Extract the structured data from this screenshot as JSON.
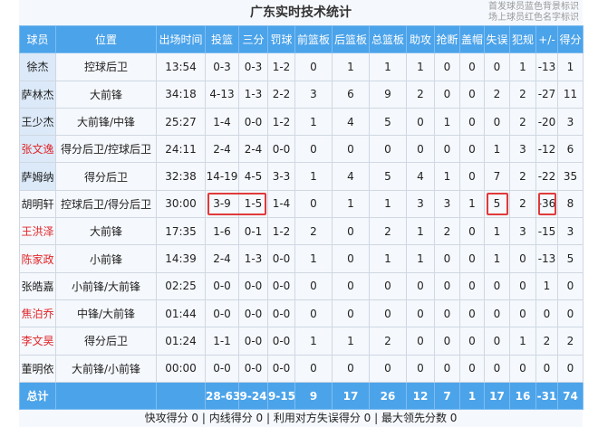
{
  "title": "广东实时技术统计",
  "notes": [
    "首发球员蓝色背景标识",
    "场上球员红色名字标识"
  ],
  "columns": [
    "球员",
    "位置",
    "出场时间",
    "投篮",
    "三分",
    "罚球",
    "前篮板",
    "后篮板",
    "总篮板",
    "助攻",
    "抢断",
    "盖帽",
    "失误",
    "犯规",
    "+/-",
    "得分"
  ],
  "colors": {
    "header": "#4ba3ea",
    "starter_bg": "#dce9f8",
    "on_court_name": "#e0262a",
    "highlight_box": "#e03a3a"
  },
  "players": [
    {
      "name": "徐杰",
      "starter": true,
      "on_court": false,
      "stats": [
        "控球后卫",
        "13:54",
        "0-3",
        "0-3",
        "1-2",
        "0",
        "1",
        "1",
        "1",
        "0",
        "0",
        "0",
        "1",
        "-13",
        "1"
      ]
    },
    {
      "name": "萨林杰",
      "starter": true,
      "on_court": false,
      "stats": [
        "大前锋",
        "34:18",
        "4-13",
        "1-3",
        "2-2",
        "3",
        "6",
        "9",
        "2",
        "0",
        "0",
        "2",
        "2",
        "-27",
        "11"
      ]
    },
    {
      "name": "王少杰",
      "starter": true,
      "on_court": false,
      "stats": [
        "大前锋/中锋",
        "25:27",
        "1-4",
        "0-0",
        "1-2",
        "1",
        "4",
        "5",
        "0",
        "1",
        "0",
        "0",
        "2",
        "-20",
        "3"
      ]
    },
    {
      "name": "张文逸",
      "starter": true,
      "on_court": true,
      "stats": [
        "得分后卫/控球后卫",
        "24:11",
        "2-4",
        "2-4",
        "0-0",
        "0",
        "0",
        "0",
        "0",
        "0",
        "0",
        "1",
        "3",
        "-12",
        "6"
      ]
    },
    {
      "name": "萨姆纳",
      "starter": true,
      "on_court": false,
      "stats": [
        "得分后卫",
        "32:38",
        "14-19",
        "4-5",
        "3-3",
        "1",
        "4",
        "5",
        "4",
        "1",
        "0",
        "7",
        "2",
        "-22",
        "35"
      ]
    },
    {
      "name": "胡明轩",
      "starter": false,
      "on_court": false,
      "stats": [
        "控球后卫/得分后卫",
        "30:00",
        "3-9",
        "1-5",
        "1-4",
        "0",
        "1",
        "1",
        "3",
        "3",
        "1",
        "5",
        "2",
        "-36",
        "8"
      ]
    },
    {
      "name": "王洪泽",
      "starter": false,
      "on_court": true,
      "stats": [
        "大前锋",
        "17:35",
        "1-6",
        "0-1",
        "1-2",
        "2",
        "0",
        "2",
        "1",
        "2",
        "0",
        "1",
        "3",
        "-15",
        "3"
      ]
    },
    {
      "name": "陈家政",
      "starter": false,
      "on_court": true,
      "stats": [
        "小前锋",
        "14:39",
        "2-4",
        "1-3",
        "0-0",
        "1",
        "0",
        "1",
        "1",
        "0",
        "0",
        "1",
        "0",
        "-13",
        "5"
      ]
    },
    {
      "name": "张皓嘉",
      "starter": false,
      "on_court": false,
      "stats": [
        "小前锋/大前锋",
        "02:25",
        "0-0",
        "0-0",
        "0-0",
        "0",
        "0",
        "0",
        "0",
        "0",
        "0",
        "0",
        "0",
        "1",
        "0"
      ]
    },
    {
      "name": "焦泊乔",
      "starter": false,
      "on_court": true,
      "stats": [
        "中锋/大前锋",
        "01:44",
        "0-0",
        "0-0",
        "0-0",
        "0",
        "0",
        "0",
        "0",
        "0",
        "0",
        "0",
        "0",
        "0",
        "0"
      ]
    },
    {
      "name": "李文昊",
      "starter": false,
      "on_court": true,
      "stats": [
        "得分后卫",
        "01:24",
        "1-1",
        "0-0",
        "0-0",
        "1",
        "1",
        "2",
        "0",
        "0",
        "0",
        "0",
        "1",
        "2",
        "2"
      ]
    },
    {
      "name": "董明依",
      "starter": false,
      "on_court": false,
      "stats": [
        "大前锋/小前锋",
        "00:00",
        "0-0",
        "0-0",
        "0-0",
        "0",
        "0",
        "0",
        "0",
        "0",
        "0",
        "0",
        "0",
        "0",
        "0"
      ]
    }
  ],
  "total": {
    "label": "总计",
    "stats": [
      "",
      "",
      "28-63",
      "9-24",
      "9-15",
      "9",
      "17",
      "26",
      "12",
      "7",
      "1",
      "17",
      "16",
      "-31",
      "74"
    ]
  },
  "footer": "快攻得分 0 | 内线得分 0 | 利用对方失误得分 0 | 最大领先分数 0"
}
